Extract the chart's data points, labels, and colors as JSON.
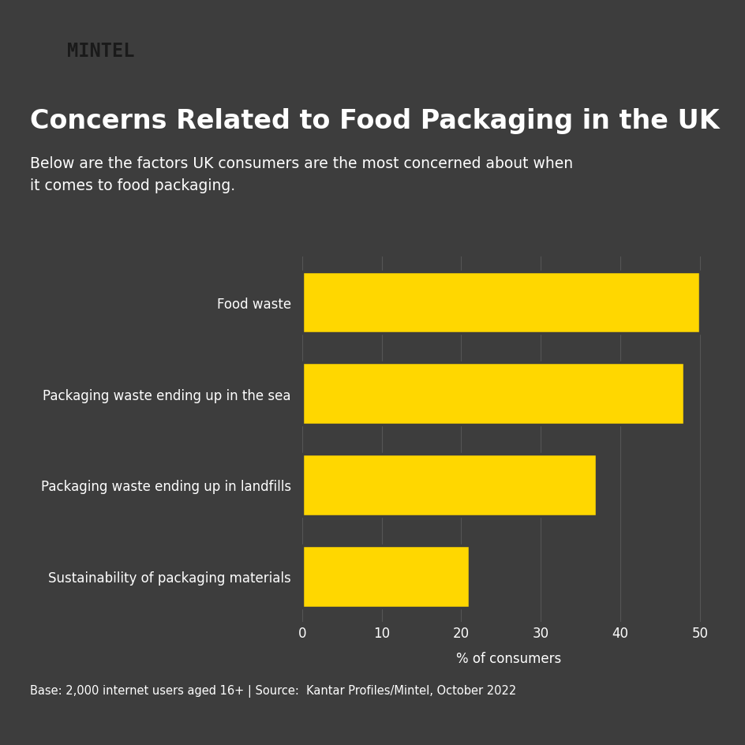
{
  "title": "Concerns Related to Food Packaging in the UK",
  "subtitle": "Below are the factors UK consumers are the most concerned about when\nit comes to food packaging.",
  "categories": [
    "Food waste",
    "Packaging waste ending up in the sea",
    "Packaging waste ending up in landfills",
    "Sustainability of packaging materials"
  ],
  "values": [
    50,
    48,
    37,
    21
  ],
  "bar_color": "#FFD700",
  "background_color": "#3d3d3d",
  "text_color": "#ffffff",
  "title_color": "#ffffff",
  "xlabel": "% of consumers",
  "xlim": [
    0,
    52
  ],
  "xticks": [
    0,
    10,
    20,
    30,
    40,
    50
  ],
  "footnote": "Base: 2,000 internet users aged 16+ | Source:  Kantar Profiles/Mintel, October 2022",
  "mintel_bg": "#FFD700",
  "mintel_text": "#1a1a1a",
  "separator_color": "#888888",
  "grid_color": "#555555"
}
